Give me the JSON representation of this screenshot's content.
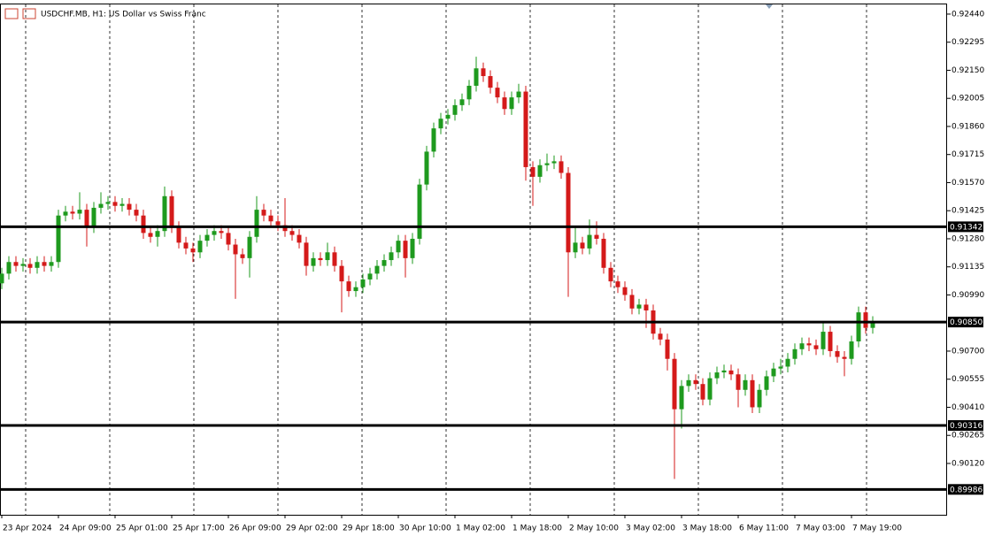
{
  "chart_data": {
    "type": "candlestick",
    "title": "USDCHF.MB, H1:  US Dollar vs Swiss Franc",
    "x_labels": [
      "23 Apr 2024",
      "24 Apr 09:00",
      "25 Apr 01:00",
      "25 Apr 17:00",
      "26 Apr 09:00",
      "29 Apr 02:00",
      "29 Apr 18:00",
      "30 Apr 10:00",
      "1 May 02:00",
      "1 May 18:00",
      "2 May 10:00",
      "3 May 02:00",
      "3 May 18:00",
      "6 May 11:00",
      "7 May 03:00",
      "7 May 19:00"
    ],
    "open": [
      0.9105,
      0.911,
      0.9116,
      0.9114,
      0.9115,
      0.9113,
      0.9116,
      0.9114,
      0.9116,
      0.914,
      0.9142,
      0.9141,
      0.9143,
      0.9134,
      0.9144,
      0.9146,
      0.9147,
      0.9145,
      0.9146,
      0.9143,
      0.914,
      0.9131,
      0.9129,
      0.9132,
      0.915,
      0.9134,
      0.9126,
      0.9123,
      0.9121,
      0.9127,
      0.913,
      0.9132,
      0.9131,
      0.9125,
      0.912,
      0.9118,
      0.9129,
      0.9143,
      0.914,
      0.9137,
      0.9135,
      0.9132,
      0.913,
      0.9126,
      0.9114,
      0.9118,
      0.9117,
      0.9121,
      0.9114,
      0.9106,
      0.9101,
      0.9103,
      0.9107,
      0.911,
      0.9114,
      0.9117,
      0.9121,
      0.9127,
      0.9118,
      0.9128,
      0.9156,
      0.9173,
      0.9185,
      0.919,
      0.9192,
      0.9197,
      0.92,
      0.9207,
      0.9216,
      0.9212,
      0.9206,
      0.9201,
      0.9195,
      0.9201,
      0.9204,
      0.9165,
      0.916,
      0.9166,
      0.9167,
      0.9168,
      0.9162,
      0.9121,
      0.9126,
      0.9123,
      0.913,
      0.9128,
      0.9113,
      0.9106,
      0.9103,
      0.9099,
      0.9092,
      0.9094,
      0.9091,
      0.9079,
      0.9076,
      0.9066,
      0.904,
      0.9052,
      0.9055,
      0.9053,
      0.9045,
      0.9056,
      0.9059,
      0.906,
      0.9058,
      0.905,
      0.9055,
      0.9041,
      0.905,
      0.9057,
      0.9061,
      0.9062,
      0.9066,
      0.9071,
      0.9074,
      0.9073,
      0.9071,
      0.908,
      0.907,
      0.9067,
      0.9066,
      0.9075,
      0.909,
      0.9082
    ],
    "high": [
      0.9113,
      0.9119,
      0.9119,
      0.9118,
      0.9118,
      0.9119,
      0.9119,
      0.9119,
      0.9143,
      0.9145,
      0.9145,
      0.9152,
      0.9146,
      0.9147,
      0.9152,
      0.915,
      0.915,
      0.9149,
      0.9149,
      0.9146,
      0.9143,
      0.9134,
      0.9135,
      0.9155,
      0.9153,
      0.9137,
      0.9129,
      0.9126,
      0.913,
      0.9133,
      0.9135,
      0.9135,
      0.9134,
      0.9128,
      0.9123,
      0.9132,
      0.915,
      0.9146,
      0.9143,
      0.914,
      0.9149,
      0.9135,
      0.9133,
      0.9129,
      0.9121,
      0.9121,
      0.9126,
      0.9124,
      0.9117,
      0.9109,
      0.9106,
      0.911,
      0.9113,
      0.9117,
      0.912,
      0.9124,
      0.913,
      0.913,
      0.9131,
      0.9159,
      0.9176,
      0.9188,
      0.9193,
      0.9195,
      0.92,
      0.9203,
      0.921,
      0.9222,
      0.9219,
      0.9215,
      0.9209,
      0.9204,
      0.9204,
      0.9208,
      0.9207,
      0.9168,
      0.9169,
      0.9172,
      0.9171,
      0.9171,
      0.9165,
      0.9134,
      0.9129,
      0.9138,
      0.9137,
      0.9131,
      0.9116,
      0.9109,
      0.9106,
      0.9102,
      0.9097,
      0.9097,
      0.9094,
      0.9082,
      0.9079,
      0.9069,
      0.9055,
      0.9058,
      0.9058,
      0.9056,
      0.9059,
      0.9062,
      0.9063,
      0.9063,
      0.9061,
      0.9058,
      0.9058,
      0.9053,
      0.906,
      0.9064,
      0.9066,
      0.9069,
      0.9074,
      0.9077,
      0.9077,
      0.9076,
      0.9085,
      0.9083,
      0.9073,
      0.907,
      0.9078,
      0.9093,
      0.9093,
      0.9088
    ],
    "low": [
      0.9102,
      0.9107,
      0.9111,
      0.9111,
      0.911,
      0.911,
      0.9111,
      0.9111,
      0.9113,
      0.9137,
      0.9138,
      0.9138,
      0.9124,
      0.9131,
      0.9141,
      0.9143,
      0.9142,
      0.9142,
      0.914,
      0.9137,
      0.9128,
      0.9126,
      0.9124,
      0.9129,
      0.9131,
      0.9123,
      0.912,
      0.9116,
      0.9118,
      0.9124,
      0.9127,
      0.9128,
      0.9122,
      0.9097,
      0.9115,
      0.9108,
      0.9126,
      0.9137,
      0.9134,
      0.9132,
      0.9129,
      0.9127,
      0.9123,
      0.9109,
      0.9111,
      0.9114,
      0.9114,
      0.9111,
      0.909,
      0.9098,
      0.9098,
      0.91,
      0.9104,
      0.9107,
      0.9111,
      0.9114,
      0.9118,
      0.9108,
      0.9115,
      0.9125,
      0.9153,
      0.917,
      0.9182,
      0.9187,
      0.9189,
      0.9194,
      0.9197,
      0.9204,
      0.9209,
      0.9203,
      0.9198,
      0.9192,
      0.9192,
      0.9198,
      0.9158,
      0.9145,
      0.9157,
      0.9163,
      0.9164,
      0.9159,
      0.9098,
      0.9118,
      0.912,
      0.912,
      0.9125,
      0.911,
      0.9103,
      0.91,
      0.9096,
      0.9089,
      0.9089,
      0.9082,
      0.9076,
      0.9073,
      0.906,
      0.9004,
      0.903,
      0.9049,
      0.905,
      0.9042,
      0.9042,
      0.9053,
      0.9056,
      0.9055,
      0.9041,
      0.9047,
      0.9038,
      0.9038,
      0.9047,
      0.9054,
      0.9058,
      0.9059,
      0.9063,
      0.9068,
      0.907,
      0.9068,
      0.9068,
      0.9067,
      0.9064,
      0.9057,
      0.9063,
      0.9072,
      0.9079,
      0.9079
    ],
    "close": [
      0.911,
      0.9116,
      0.9114,
      0.9115,
      0.9113,
      0.9116,
      0.9114,
      0.9116,
      0.914,
      0.9142,
      0.9141,
      0.9143,
      0.9134,
      0.9144,
      0.9146,
      0.9147,
      0.9145,
      0.9146,
      0.9143,
      0.914,
      0.9131,
      0.9129,
      0.9132,
      0.915,
      0.9134,
      0.9126,
      0.9123,
      0.9121,
      0.9127,
      0.913,
      0.9132,
      0.9131,
      0.9125,
      0.912,
      0.9118,
      0.9129,
      0.9143,
      0.914,
      0.9137,
      0.9135,
      0.9132,
      0.913,
      0.9126,
      0.9114,
      0.9118,
      0.9117,
      0.9121,
      0.9114,
      0.9106,
      0.9101,
      0.9103,
      0.9107,
      0.911,
      0.9114,
      0.9117,
      0.9121,
      0.9127,
      0.9118,
      0.9128,
      0.9156,
      0.9173,
      0.9185,
      0.919,
      0.9192,
      0.9197,
      0.92,
      0.9207,
      0.9216,
      0.9212,
      0.9206,
      0.9201,
      0.9195,
      0.9201,
      0.9204,
      0.9165,
      0.916,
      0.9166,
      0.9167,
      0.9168,
      0.9162,
      0.9121,
      0.9126,
      0.9123,
      0.913,
      0.9128,
      0.9113,
      0.9106,
      0.9103,
      0.9099,
      0.9092,
      0.9094,
      0.9091,
      0.9079,
      0.9076,
      0.9066,
      0.904,
      0.9052,
      0.9055,
      0.9053,
      0.9045,
      0.9056,
      0.9059,
      0.906,
      0.9058,
      0.905,
      0.9055,
      0.9041,
      0.905,
      0.9057,
      0.9061,
      0.9062,
      0.9066,
      0.9071,
      0.9074,
      0.9073,
      0.9071,
      0.908,
      0.907,
      0.9067,
      0.9066,
      0.9075,
      0.909,
      0.9082,
      0.9085
    ],
    "up_color": "#1e9a1e",
    "down_color": "#d41a1a",
    "ylim": [
      0.89855,
      0.9249
    ],
    "yticks": [
      {
        "value": 0.9244,
        "label": "0.92440"
      },
      {
        "value": 0.92295,
        "label": "0.92295"
      },
      {
        "value": 0.9215,
        "label": "0.92150"
      },
      {
        "value": 0.92005,
        "label": "0.92005"
      },
      {
        "value": 0.9186,
        "label": "0.91860"
      },
      {
        "value": 0.91715,
        "label": "0.91715"
      },
      {
        "value": 0.9157,
        "label": "0.91570"
      },
      {
        "value": 0.91425,
        "label": "0.91425"
      },
      {
        "value": 0.9128,
        "label": "0.91280"
      },
      {
        "value": 0.91135,
        "label": "0.91135"
      },
      {
        "value": 0.9099,
        "label": "0.90990"
      },
      {
        "value": 0.907,
        "label": "0.90700"
      },
      {
        "value": 0.90555,
        "label": "0.90555"
      },
      {
        "value": 0.9041,
        "label": "0.90410"
      },
      {
        "value": 0.90265,
        "label": "0.90265"
      },
      {
        "value": 0.9012,
        "label": "0.90120"
      }
    ],
    "hlines": [
      {
        "value": 0.91342,
        "label": "0.91342"
      },
      {
        "value": 0.9085,
        "label": "0.90850"
      },
      {
        "value": 0.90316,
        "label": "0.90316"
      },
      {
        "value": 0.89986,
        "label": "0.89986"
      }
    ]
  }
}
